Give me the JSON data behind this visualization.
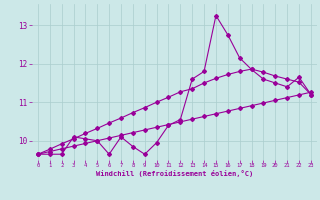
{
  "xlabel": "Windchill (Refroidissement éolien,°C)",
  "xlim": [
    -0.5,
    23.5
  ],
  "ylim": [
    9.5,
    13.55
  ],
  "yticks": [
    10,
    11,
    12,
    13
  ],
  "xticks": [
    0,
    1,
    2,
    3,
    4,
    5,
    6,
    7,
    8,
    9,
    10,
    11,
    12,
    13,
    14,
    15,
    16,
    17,
    18,
    19,
    20,
    21,
    22,
    23
  ],
  "background_color": "#cce8e8",
  "grid_color": "#aacece",
  "line_color": "#990099",
  "hours": [
    0,
    1,
    2,
    3,
    4,
    5,
    6,
    7,
    8,
    9,
    10,
    11,
    12,
    13,
    14,
    15,
    16,
    17,
    18,
    19,
    20,
    21,
    22,
    23
  ],
  "data_line": [
    9.65,
    9.65,
    9.65,
    10.1,
    10.05,
    10.0,
    9.65,
    10.1,
    9.85,
    9.65,
    9.95,
    10.4,
    10.55,
    11.6,
    11.8,
    13.25,
    12.75,
    12.15,
    11.85,
    11.6,
    11.5,
    11.4,
    11.65,
    11.2
  ],
  "trend_lower": [
    9.65,
    9.72,
    9.79,
    9.86,
    9.93,
    10.0,
    10.07,
    10.14,
    10.21,
    10.28,
    10.35,
    10.42,
    10.49,
    10.56,
    10.63,
    10.7,
    10.77,
    10.84,
    10.91,
    10.98,
    11.05,
    11.12,
    11.19,
    11.26
  ],
  "trend_upper": [
    9.65,
    9.78,
    9.92,
    10.05,
    10.19,
    10.32,
    10.46,
    10.59,
    10.73,
    10.86,
    11.0,
    11.13,
    11.27,
    11.35,
    11.5,
    11.62,
    11.72,
    11.8,
    11.86,
    11.78,
    11.68,
    11.6,
    11.52,
    11.2
  ]
}
